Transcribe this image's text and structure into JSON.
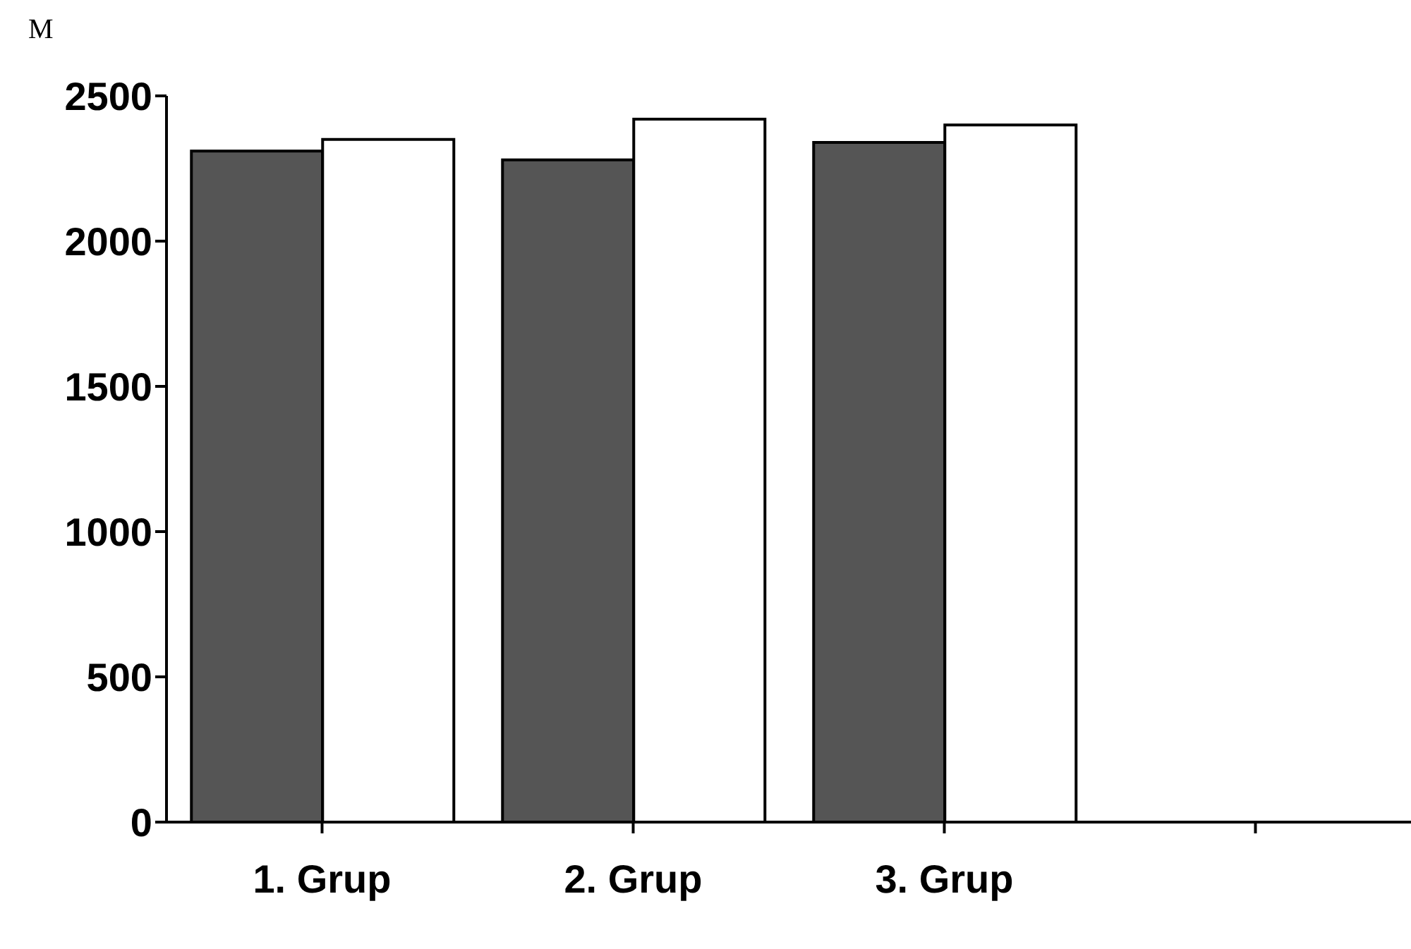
{
  "chart_data": {
    "type": "bar",
    "ylabel": "M",
    "categories": [
      "1. Grup",
      "2. Grup",
      "3. Grup",
      null
    ],
    "series": [
      {
        "color": "#555555",
        "values": [
          2310,
          2280,
          2340,
          null
        ]
      },
      {
        "color": "#ffffff",
        "values": [
          2350,
          2420,
          2400,
          null
        ]
      }
    ],
    "ylim": [
      0,
      2500
    ],
    "yticks": [
      0,
      500,
      1000,
      1500,
      2000,
      2500
    ],
    "grid": false,
    "legend": false
  }
}
